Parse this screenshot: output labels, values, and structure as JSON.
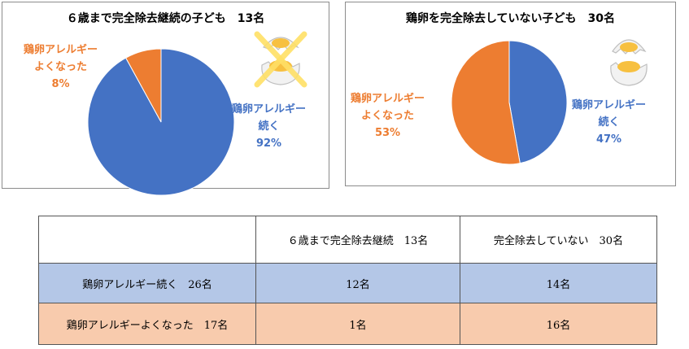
{
  "chart_data": [
    {
      "type": "pie",
      "title": "６歳まで完全除去継続の子ども　13名",
      "slices": [
        {
          "label": "鶏卵アレルギー続く",
          "value": 92,
          "color": "#4472c4"
        },
        {
          "label": "鶏卵アレルギーよくなった",
          "value": 8,
          "color": "#ed7d31"
        }
      ]
    },
    {
      "type": "pie",
      "title": "鶏卵を完全除去していない子ども　30名",
      "slices": [
        {
          "label": "鶏卵アレルギー続く",
          "value": 47,
          "color": "#4472c4"
        },
        {
          "label": "鶏卵アレルギーよくなった",
          "value": 53,
          "color": "#ed7d31"
        }
      ]
    }
  ],
  "left_chart": {
    "title": "６歳まで完全除去継続の子ども　13名",
    "orange_label_line1": "鶏卵アレルギー",
    "orange_label_line2": "よくなった",
    "orange_pct": "8%",
    "blue_label_line1": "鶏卵アレルギー",
    "blue_label_line2": "続く",
    "blue_pct": "92%"
  },
  "right_chart": {
    "title": "鶏卵を完全除去していない子ども　30名",
    "orange_label_line1": "鶏卵アレルギー",
    "orange_label_line2": "よくなった",
    "orange_pct": "53%",
    "blue_label_line1": "鶏卵アレルギー",
    "blue_label_line2": "続く",
    "blue_pct": "47%"
  },
  "table": {
    "header": [
      "",
      "６歳まで完全除去継続　13名",
      "完全除去していない　30名"
    ],
    "rows": [
      [
        "鶏卵アレルギー続く　26名",
        "12名",
        "14名"
      ],
      [
        "鶏卵アレルギーよくなった　17名",
        "1名",
        "16名"
      ]
    ]
  },
  "icons": {
    "left": "cracked-egg-crossed-out-icon",
    "right": "cracked-egg-icon"
  },
  "colors": {
    "blue": "#4472c4",
    "orange": "#ed7d31",
    "row_blue": "#b4c7e7",
    "row_orange": "#f8cbad",
    "cross": "#ffe066"
  }
}
